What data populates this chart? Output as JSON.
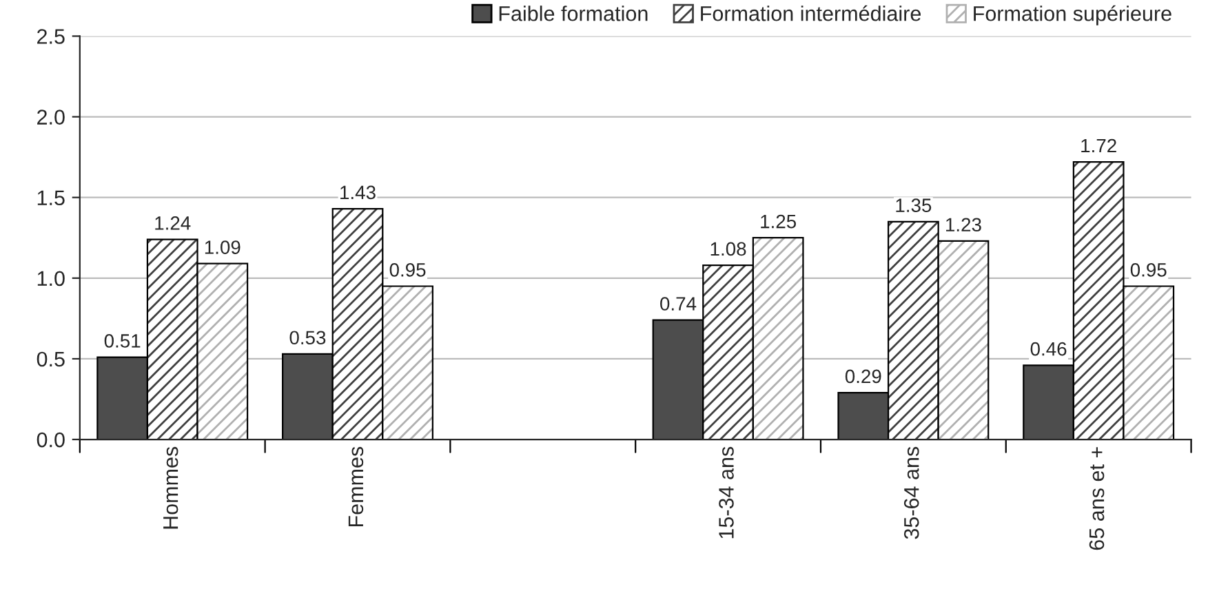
{
  "chart_data": {
    "type": "bar",
    "categories": [
      "Hommes",
      "Femmes",
      null,
      "15-34 ans",
      "35-64 ans",
      "65 ans et +"
    ],
    "series": [
      {
        "name": "Faible formation",
        "color": "#4d4d4d",
        "values": [
          0.51,
          0.53,
          null,
          0.74,
          0.29,
          0.46
        ]
      },
      {
        "name": "Formation intermédiaire",
        "color": "#404040",
        "values": [
          1.24,
          1.43,
          null,
          1.08,
          1.35,
          1.72
        ]
      },
      {
        "name": "Formation supérieure",
        "color": "#b0b0b0",
        "values": [
          1.09,
          0.95,
          null,
          1.25,
          1.23,
          0.95
        ]
      }
    ],
    "ylim": [
      0,
      2.5
    ],
    "yticks": [
      {
        "value": 0,
        "label": "0.0"
      },
      {
        "value": 0.5,
        "label": "0.5"
      },
      {
        "value": 1,
        "label": "1.0"
      },
      {
        "value": 1.5,
        "label": "1.5"
      },
      {
        "value": 2,
        "label": "2.0"
      },
      {
        "value": 2.5,
        "label": "2.5"
      }
    ],
    "grid": "y",
    "legend": "top right",
    "data_labels": true
  }
}
